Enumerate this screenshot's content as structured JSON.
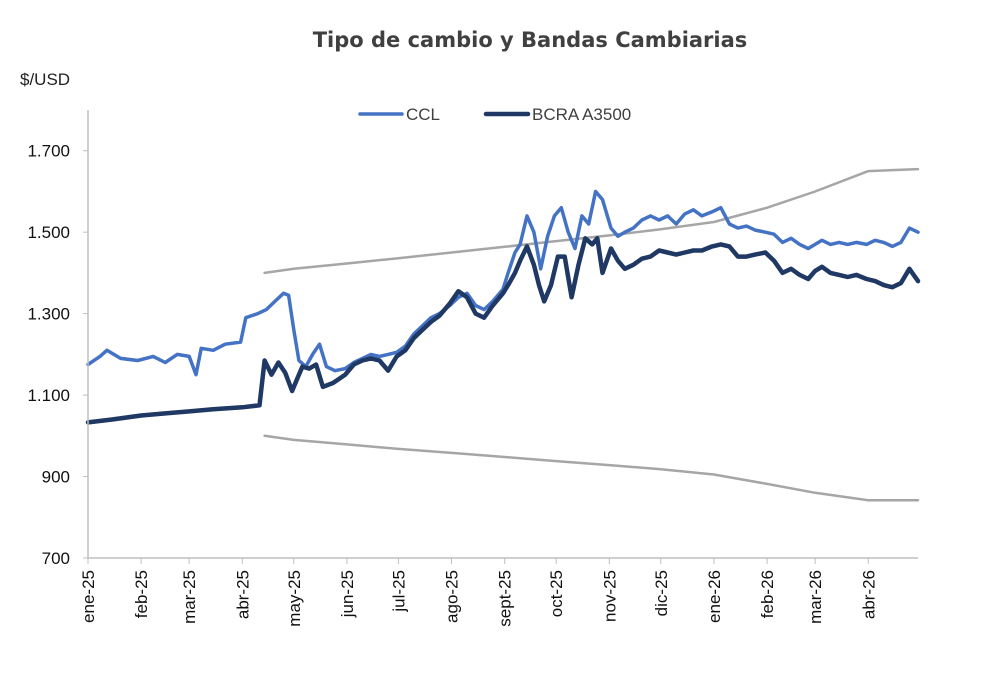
{
  "chart_data": {
    "type": "line",
    "title": "Tipo de cambio y Bandas Cambiarias",
    "ylabel": "$/USD",
    "ylim": [
      700,
      1800
    ],
    "yticks": [
      700,
      900,
      1100,
      1300,
      1500,
      1700
    ],
    "ytick_labels": [
      "700",
      "900",
      "1.100",
      "1.300",
      "1.500",
      "1.700"
    ],
    "x_range": [
      "2025-01-01",
      "2026-04-30"
    ],
    "x_ticks": [
      "2025-01-01",
      "2025-02-01",
      "2025-03-01",
      "2025-04-01",
      "2025-05-01",
      "2025-06-01",
      "2025-07-01",
      "2025-08-01",
      "2025-09-01",
      "2025-10-01",
      "2025-11-01",
      "2025-12-01",
      "2026-01-01",
      "2026-02-01",
      "2026-03-01",
      "2026-04-01"
    ],
    "x_tick_labels": [
      "ene-25",
      "feb-25",
      "mar-25",
      "abr-25",
      "may-25",
      "jun-25",
      "jul-25",
      "ago-25",
      "sept-25",
      "oct-25",
      "nov-25",
      "dic-25",
      "ene-26",
      "feb-26",
      "mar-26",
      "abr-26"
    ],
    "legend_position": "top-center",
    "grid": false,
    "series": [
      {
        "name": "CCL",
        "color": "#4472C4",
        "width": 3.5,
        "points": [
          [
            "2025-01-01",
            1175
          ],
          [
            "2025-01-08",
            1195
          ],
          [
            "2025-01-12",
            1210
          ],
          [
            "2025-01-20",
            1190
          ],
          [
            "2025-01-30",
            1185
          ],
          [
            "2025-02-08",
            1195
          ],
          [
            "2025-02-15",
            1180
          ],
          [
            "2025-02-22",
            1200
          ],
          [
            "2025-03-01",
            1195
          ],
          [
            "2025-03-05",
            1150
          ],
          [
            "2025-03-08",
            1215
          ],
          [
            "2025-03-15",
            1210
          ],
          [
            "2025-03-22",
            1225
          ],
          [
            "2025-03-31",
            1230
          ],
          [
            "2025-04-03",
            1290
          ],
          [
            "2025-04-10",
            1300
          ],
          [
            "2025-04-15",
            1310
          ],
          [
            "2025-04-20",
            1330
          ],
          [
            "2025-04-25",
            1350
          ],
          [
            "2025-04-28",
            1345
          ],
          [
            "2025-05-01",
            1260
          ],
          [
            "2025-05-04",
            1185
          ],
          [
            "2025-05-08",
            1170
          ],
          [
            "2025-05-12",
            1200
          ],
          [
            "2025-05-16",
            1225
          ],
          [
            "2025-05-20",
            1170
          ],
          [
            "2025-05-25",
            1160
          ],
          [
            "2025-05-31",
            1165
          ],
          [
            "2025-06-05",
            1180
          ],
          [
            "2025-06-10",
            1190
          ],
          [
            "2025-06-15",
            1200
          ],
          [
            "2025-06-20",
            1195
          ],
          [
            "2025-06-25",
            1200
          ],
          [
            "2025-06-30",
            1205
          ],
          [
            "2025-07-05",
            1220
          ],
          [
            "2025-07-10",
            1250
          ],
          [
            "2025-07-15",
            1270
          ],
          [
            "2025-07-20",
            1290
          ],
          [
            "2025-07-25",
            1300
          ],
          [
            "2025-07-31",
            1320
          ],
          [
            "2025-08-05",
            1340
          ],
          [
            "2025-08-10",
            1350
          ],
          [
            "2025-08-15",
            1320
          ],
          [
            "2025-08-20",
            1310
          ],
          [
            "2025-08-25",
            1330
          ],
          [
            "2025-08-31",
            1360
          ],
          [
            "2025-09-03",
            1400
          ],
          [
            "2025-09-07",
            1450
          ],
          [
            "2025-09-10",
            1470
          ],
          [
            "2025-09-14",
            1540
          ],
          [
            "2025-09-18",
            1500
          ],
          [
            "2025-09-22",
            1410
          ],
          [
            "2025-09-26",
            1490
          ],
          [
            "2025-09-30",
            1540
          ],
          [
            "2025-10-04",
            1560
          ],
          [
            "2025-10-08",
            1500
          ],
          [
            "2025-10-12",
            1460
          ],
          [
            "2025-10-16",
            1540
          ],
          [
            "2025-10-20",
            1520
          ],
          [
            "2025-10-24",
            1600
          ],
          [
            "2025-10-28",
            1580
          ],
          [
            "2025-11-02",
            1510
          ],
          [
            "2025-11-06",
            1490
          ],
          [
            "2025-11-10",
            1500
          ],
          [
            "2025-11-15",
            1510
          ],
          [
            "2025-11-20",
            1530
          ],
          [
            "2025-11-25",
            1540
          ],
          [
            "2025-11-30",
            1530
          ],
          [
            "2025-12-05",
            1540
          ],
          [
            "2025-12-10",
            1520
          ],
          [
            "2025-12-15",
            1545
          ],
          [
            "2025-12-20",
            1555
          ],
          [
            "2025-12-25",
            1540
          ],
          [
            "2025-12-31",
            1550
          ],
          [
            "2026-01-05",
            1560
          ],
          [
            "2026-01-10",
            1520
          ],
          [
            "2026-01-15",
            1510
          ],
          [
            "2026-01-20",
            1515
          ],
          [
            "2026-01-25",
            1505
          ],
          [
            "2026-01-31",
            1500
          ],
          [
            "2026-02-05",
            1495
          ],
          [
            "2026-02-10",
            1475
          ],
          [
            "2026-02-15",
            1485
          ],
          [
            "2026-02-20",
            1470
          ],
          [
            "2026-02-25",
            1460
          ],
          [
            "2026-03-01",
            1470
          ],
          [
            "2026-03-05",
            1480
          ],
          [
            "2026-03-10",
            1470
          ],
          [
            "2026-03-15",
            1475
          ],
          [
            "2026-03-20",
            1470
          ],
          [
            "2026-03-25",
            1475
          ],
          [
            "2026-03-31",
            1470
          ],
          [
            "2026-04-05",
            1480
          ],
          [
            "2026-04-10",
            1475
          ],
          [
            "2026-04-15",
            1465
          ],
          [
            "2026-04-20",
            1475
          ],
          [
            "2026-04-25",
            1510
          ],
          [
            "2026-04-30",
            1500
          ]
        ]
      },
      {
        "name": "BCRA A3500",
        "color": "#1F3864",
        "width": 4.5,
        "points": [
          [
            "2025-01-01",
            1033
          ],
          [
            "2025-01-15",
            1040
          ],
          [
            "2025-02-01",
            1050
          ],
          [
            "2025-02-15",
            1055
          ],
          [
            "2025-03-01",
            1060
          ],
          [
            "2025-03-15",
            1065
          ],
          [
            "2025-04-01",
            1070
          ],
          [
            "2025-04-11",
            1075
          ],
          [
            "2025-04-14",
            1185
          ],
          [
            "2025-04-18",
            1150
          ],
          [
            "2025-04-22",
            1180
          ],
          [
            "2025-04-26",
            1155
          ],
          [
            "2025-04-30",
            1110
          ],
          [
            "2025-05-03",
            1140
          ],
          [
            "2025-05-06",
            1170
          ],
          [
            "2025-05-10",
            1165
          ],
          [
            "2025-05-14",
            1175
          ],
          [
            "2025-05-18",
            1120
          ],
          [
            "2025-05-24",
            1130
          ],
          [
            "2025-05-31",
            1150
          ],
          [
            "2025-06-05",
            1175
          ],
          [
            "2025-06-10",
            1185
          ],
          [
            "2025-06-15",
            1190
          ],
          [
            "2025-06-20",
            1185
          ],
          [
            "2025-06-25",
            1160
          ],
          [
            "2025-06-30",
            1195
          ],
          [
            "2025-07-05",
            1210
          ],
          [
            "2025-07-10",
            1240
          ],
          [
            "2025-07-15",
            1260
          ],
          [
            "2025-07-20",
            1280
          ],
          [
            "2025-07-25",
            1295
          ],
          [
            "2025-07-31",
            1325
          ],
          [
            "2025-08-05",
            1355
          ],
          [
            "2025-08-10",
            1340
          ],
          [
            "2025-08-15",
            1300
          ],
          [
            "2025-08-20",
            1290
          ],
          [
            "2025-08-25",
            1320
          ],
          [
            "2025-08-31",
            1350
          ],
          [
            "2025-09-03",
            1370
          ],
          [
            "2025-09-07",
            1400
          ],
          [
            "2025-09-10",
            1430
          ],
          [
            "2025-09-14",
            1465
          ],
          [
            "2025-09-18",
            1420
          ],
          [
            "2025-09-21",
            1370
          ],
          [
            "2025-09-24",
            1330
          ],
          [
            "2025-09-28",
            1370
          ],
          [
            "2025-10-02",
            1440
          ],
          [
            "2025-10-06",
            1440
          ],
          [
            "2025-10-10",
            1340
          ],
          [
            "2025-10-14",
            1420
          ],
          [
            "2025-10-18",
            1485
          ],
          [
            "2025-10-22",
            1470
          ],
          [
            "2025-10-25",
            1485
          ],
          [
            "2025-10-28",
            1400
          ],
          [
            "2025-11-02",
            1460
          ],
          [
            "2025-11-06",
            1430
          ],
          [
            "2025-11-10",
            1410
          ],
          [
            "2025-11-15",
            1420
          ],
          [
            "2025-11-20",
            1435
          ],
          [
            "2025-11-25",
            1440
          ],
          [
            "2025-11-30",
            1455
          ],
          [
            "2025-12-05",
            1450
          ],
          [
            "2025-12-10",
            1445
          ],
          [
            "2025-12-15",
            1450
          ],
          [
            "2025-12-20",
            1455
          ],
          [
            "2025-12-25",
            1455
          ],
          [
            "2025-12-31",
            1465
          ],
          [
            "2026-01-05",
            1470
          ],
          [
            "2026-01-10",
            1465
          ],
          [
            "2026-01-15",
            1440
          ],
          [
            "2026-01-20",
            1440
          ],
          [
            "2026-01-25",
            1445
          ],
          [
            "2026-01-31",
            1450
          ],
          [
            "2026-02-05",
            1430
          ],
          [
            "2026-02-10",
            1400
          ],
          [
            "2026-02-15",
            1410
          ],
          [
            "2026-02-20",
            1395
          ],
          [
            "2026-02-25",
            1385
          ],
          [
            "2026-03-01",
            1405
          ],
          [
            "2026-03-05",
            1415
          ],
          [
            "2026-03-10",
            1400
          ],
          [
            "2026-03-15",
            1395
          ],
          [
            "2026-03-20",
            1390
          ],
          [
            "2026-03-25",
            1395
          ],
          [
            "2026-03-31",
            1385
          ],
          [
            "2026-04-05",
            1380
          ],
          [
            "2026-04-10",
            1370
          ],
          [
            "2026-04-15",
            1365
          ],
          [
            "2026-04-20",
            1375
          ],
          [
            "2026-04-25",
            1410
          ],
          [
            "2026-04-30",
            1380
          ]
        ]
      },
      {
        "color": "#A6A6A6",
        "width": 2.5,
        "points": [
          [
            "2025-04-14",
            1400
          ],
          [
            "2025-05-01",
            1410
          ],
          [
            "2025-06-01",
            1423
          ],
          [
            "2025-07-01",
            1436
          ],
          [
            "2025-08-01",
            1450
          ],
          [
            "2025-09-01",
            1464
          ],
          [
            "2025-10-01",
            1478
          ],
          [
            "2025-11-01",
            1492
          ],
          [
            "2025-12-01",
            1507
          ],
          [
            "2026-01-01",
            1525
          ],
          [
            "2026-02-01",
            1560
          ],
          [
            "2026-03-01",
            1600
          ],
          [
            "2026-04-01",
            1650
          ],
          [
            "2026-04-30",
            1655
          ]
        ]
      },
      {
        "color": "#A6A6A6",
        "width": 2.5,
        "points": [
          [
            "2025-04-14",
            1000
          ],
          [
            "2025-05-01",
            990
          ],
          [
            "2025-06-01",
            979
          ],
          [
            "2025-07-01",
            968
          ],
          [
            "2025-08-01",
            958
          ],
          [
            "2025-09-01",
            948
          ],
          [
            "2025-10-01",
            938
          ],
          [
            "2025-11-01",
            928
          ],
          [
            "2025-12-01",
            918
          ],
          [
            "2026-01-01",
            905
          ],
          [
            "2026-02-01",
            882
          ],
          [
            "2026-03-01",
            860
          ],
          [
            "2026-04-01",
            842
          ],
          [
            "2026-04-30",
            842
          ]
        ]
      }
    ]
  }
}
